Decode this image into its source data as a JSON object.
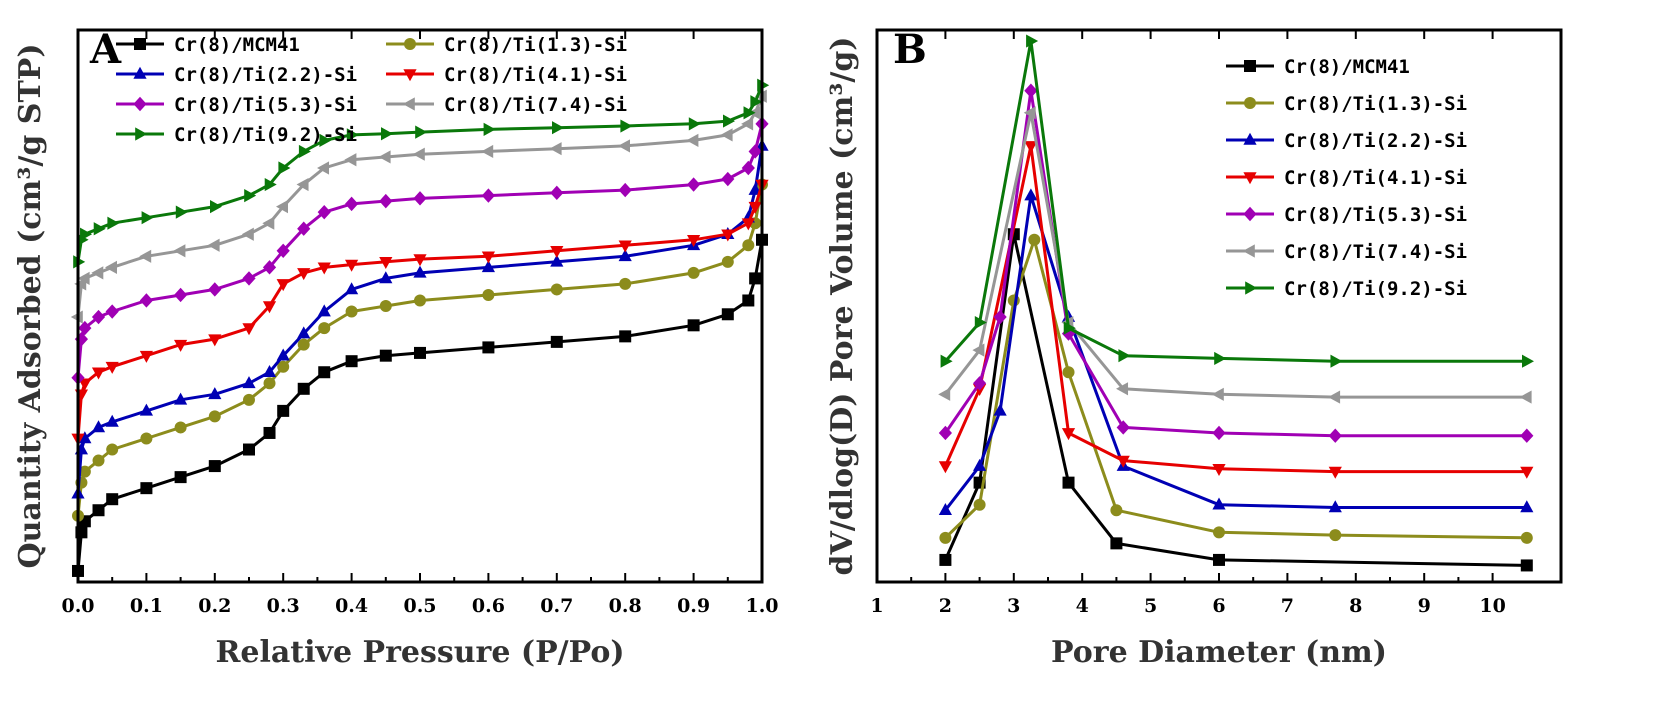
{
  "chart_data": [
    {
      "type": "line",
      "panel_label": "A",
      "title": "",
      "xlabel": "Relative Pressure (P/Po)",
      "ylabel": "Quantity Adsorbed (cm³/g STP)",
      "xlim": [
        0.0,
        1.0
      ],
      "ylim": [
        0,
        100
      ],
      "xticks": [
        0.0,
        0.1,
        0.2,
        0.3,
        0.4,
        0.5,
        0.6,
        0.7,
        0.8,
        0.9,
        1.0
      ],
      "xtick_labels": [
        "0.0",
        "0.1",
        "0.2",
        "0.3",
        "0.4",
        "0.5",
        "0.6",
        "0.7",
        "0.8",
        "0.9",
        "1.0"
      ],
      "yticks_shown": false,
      "grid": false,
      "legend_position": "top-left",
      "legend_columns": 2,
      "series": [
        {
          "name": "Cr(8)/MCM41",
          "color": "#000000",
          "marker": "square",
          "x": [
            0.0,
            0.005,
            0.01,
            0.03,
            0.05,
            0.1,
            0.15,
            0.2,
            0.25,
            0.28,
            0.3,
            0.33,
            0.36,
            0.4,
            0.45,
            0.5,
            0.6,
            0.7,
            0.8,
            0.9,
            0.95,
            0.98,
            0.99,
            1.0
          ],
          "y": [
            2,
            9,
            11,
            13,
            15,
            17,
            19,
            21,
            24,
            27,
            31,
            35,
            38,
            40,
            41,
            41.5,
            42.5,
            43.5,
            44.5,
            46.5,
            48.5,
            51,
            55,
            62
          ]
        },
        {
          "name": "Cr(8)/Ti(1.3)-Si",
          "color": "#8c8c1c",
          "marker": "circle",
          "x": [
            0.0,
            0.005,
            0.01,
            0.03,
            0.05,
            0.1,
            0.15,
            0.2,
            0.25,
            0.28,
            0.3,
            0.33,
            0.36,
            0.4,
            0.45,
            0.5,
            0.6,
            0.7,
            0.8,
            0.9,
            0.95,
            0.98,
            0.99,
            1.0
          ],
          "y": [
            12,
            18,
            20,
            22,
            24,
            26,
            28,
            30,
            33,
            36,
            39,
            43,
            46,
            49,
            50,
            51,
            52,
            53,
            54,
            56,
            58,
            61,
            65,
            72
          ]
        },
        {
          "name": "Cr(8)/Ti(2.2)-Si",
          "color": "#0000b4",
          "marker": "triangle-up",
          "x": [
            0.0,
            0.005,
            0.01,
            0.03,
            0.05,
            0.1,
            0.15,
            0.2,
            0.25,
            0.28,
            0.3,
            0.33,
            0.36,
            0.4,
            0.45,
            0.5,
            0.6,
            0.7,
            0.8,
            0.9,
            0.95,
            0.98,
            0.99,
            1.0
          ],
          "y": [
            16,
            24,
            26,
            28,
            29,
            31,
            33,
            34,
            36,
            38,
            41,
            45,
            49,
            53,
            55,
            56,
            57,
            58,
            59,
            61,
            63,
            66,
            71,
            79
          ]
        },
        {
          "name": "Cr(8)/Ti(4.1)-Si",
          "color": "#e60000",
          "marker": "triangle-down",
          "x": [
            0.0,
            0.005,
            0.01,
            0.03,
            0.05,
            0.1,
            0.15,
            0.2,
            0.25,
            0.28,
            0.3,
            0.33,
            0.36,
            0.4,
            0.45,
            0.5,
            0.6,
            0.7,
            0.8,
            0.9,
            0.95,
            0.98,
            0.99,
            1.0
          ],
          "y": [
            26,
            34,
            36,
            38,
            39,
            41,
            43,
            44,
            46,
            50,
            54,
            56,
            57,
            57.5,
            58,
            58.5,
            59,
            60,
            61,
            62,
            63,
            65,
            68,
            72
          ]
        },
        {
          "name": "Cr(8)/Ti(5.3)-Si",
          "color": "#a000b4",
          "marker": "diamond",
          "x": [
            0.0,
            0.005,
            0.01,
            0.03,
            0.05,
            0.1,
            0.15,
            0.2,
            0.25,
            0.28,
            0.3,
            0.33,
            0.36,
            0.4,
            0.45,
            0.5,
            0.6,
            0.7,
            0.8,
            0.9,
            0.95,
            0.98,
            0.99,
            1.0
          ],
          "y": [
            37,
            44,
            46,
            48,
            49,
            51,
            52,
            53,
            55,
            57,
            60,
            64,
            67,
            68.5,
            69,
            69.5,
            70,
            70.5,
            71,
            72,
            73,
            75,
            78,
            83
          ]
        },
        {
          "name": "Cr(8)/Ti(7.4)-Si",
          "color": "#969696",
          "marker": "triangle-left",
          "x": [
            0.0,
            0.005,
            0.01,
            0.03,
            0.05,
            0.1,
            0.15,
            0.2,
            0.25,
            0.28,
            0.3,
            0.33,
            0.36,
            0.4,
            0.45,
            0.5,
            0.6,
            0.7,
            0.8,
            0.9,
            0.95,
            0.98,
            0.99,
            1.0
          ],
          "y": [
            48,
            54,
            55,
            56,
            57,
            59,
            60,
            61,
            63,
            65,
            68,
            72,
            75,
            76.5,
            77,
            77.5,
            78,
            78.5,
            79,
            80,
            81,
            83,
            85,
            88
          ]
        },
        {
          "name": "Cr(8)/Ti(9.2)-Si",
          "color": "#0a780a",
          "marker": "triangle-right",
          "x": [
            0.0,
            0.005,
            0.01,
            0.03,
            0.05,
            0.1,
            0.15,
            0.2,
            0.25,
            0.28,
            0.3,
            0.33,
            0.36,
            0.4,
            0.45,
            0.5,
            0.6,
            0.7,
            0.8,
            0.9,
            0.95,
            0.98,
            0.99,
            1.0
          ],
          "y": [
            58,
            62,
            63,
            64,
            65,
            66,
            67,
            68,
            70,
            72,
            75,
            78,
            80,
            81,
            81.2,
            81.5,
            82,
            82.3,
            82.6,
            83,
            83.5,
            85,
            87,
            90
          ]
        }
      ]
    },
    {
      "type": "line",
      "panel_label": "B",
      "title": "",
      "xlabel": "Pore Diameter (nm)",
      "ylabel": "dV/dlog(D) Pore Volume (cm³/g)",
      "xlim": [
        1,
        11
      ],
      "ylim": [
        0,
        100
      ],
      "xticks": [
        1,
        2,
        3,
        4,
        5,
        6,
        7,
        8,
        9,
        10
      ],
      "xtick_labels": [
        "1",
        "2",
        "3",
        "4",
        "5",
        "6",
        "7",
        "8",
        "9",
        "10"
      ],
      "yticks_shown": false,
      "grid": false,
      "legend_position": "top-right",
      "legend_columns": 1,
      "series": [
        {
          "name": "Cr(8)/MCM41",
          "color": "#000000",
          "marker": "square",
          "x": [
            2.0,
            2.5,
            3.0,
            3.8,
            4.5,
            6.0,
            10.5
          ],
          "y": [
            4,
            18,
            63,
            18,
            7,
            4,
            3
          ]
        },
        {
          "name": "Cr(8)/Ti(1.3)-Si",
          "color": "#8c8c1c",
          "marker": "circle",
          "x": [
            2.0,
            2.5,
            3.0,
            3.3,
            3.8,
            4.5,
            6.0,
            7.7,
            10.5
          ],
          "y": [
            8,
            14,
            51,
            62,
            38,
            13,
            9,
            8.5,
            8
          ]
        },
        {
          "name": "Cr(8)/Ti(2.2)-Si",
          "color": "#0000b4",
          "marker": "triangle-up",
          "x": [
            2.0,
            2.5,
            2.8,
            3.25,
            3.8,
            4.6,
            6.0,
            7.7,
            10.5
          ],
          "y": [
            13,
            21,
            31,
            70,
            48,
            21,
            14,
            13.5,
            13.5
          ]
        },
        {
          "name": "Cr(8)/Ti(4.1)-Si",
          "color": "#e60000",
          "marker": "triangle-down",
          "x": [
            2.0,
            2.5,
            3.25,
            3.8,
            4.6,
            6.0,
            7.7,
            10.5
          ],
          "y": [
            21,
            35,
            79,
            27,
            22,
            20.5,
            20,
            20
          ]
        },
        {
          "name": "Cr(8)/Ti(5.3)-Si",
          "color": "#a000b4",
          "marker": "diamond",
          "x": [
            2.0,
            2.5,
            2.8,
            3.25,
            3.8,
            4.6,
            6.0,
            7.7,
            10.5
          ],
          "y": [
            27,
            36,
            48,
            89,
            45,
            28,
            27,
            26.5,
            26.5
          ]
        },
        {
          "name": "Cr(8)/Ti(7.4)-Si",
          "color": "#969696",
          "marker": "triangle-left",
          "x": [
            2.0,
            2.5,
            3.25,
            3.8,
            4.6,
            6.0,
            7.7,
            10.5
          ],
          "y": [
            34,
            42,
            85,
            47,
            35,
            34,
            33.5,
            33.5
          ]
        },
        {
          "name": "Cr(8)/Ti(9.2)-Si",
          "color": "#0a780a",
          "marker": "triangle-right",
          "x": [
            2.0,
            2.5,
            3.25,
            3.8,
            4.6,
            6.0,
            7.7,
            10.5
          ],
          "y": [
            40,
            47,
            98,
            46,
            41,
            40.5,
            40,
            40
          ]
        }
      ]
    }
  ]
}
